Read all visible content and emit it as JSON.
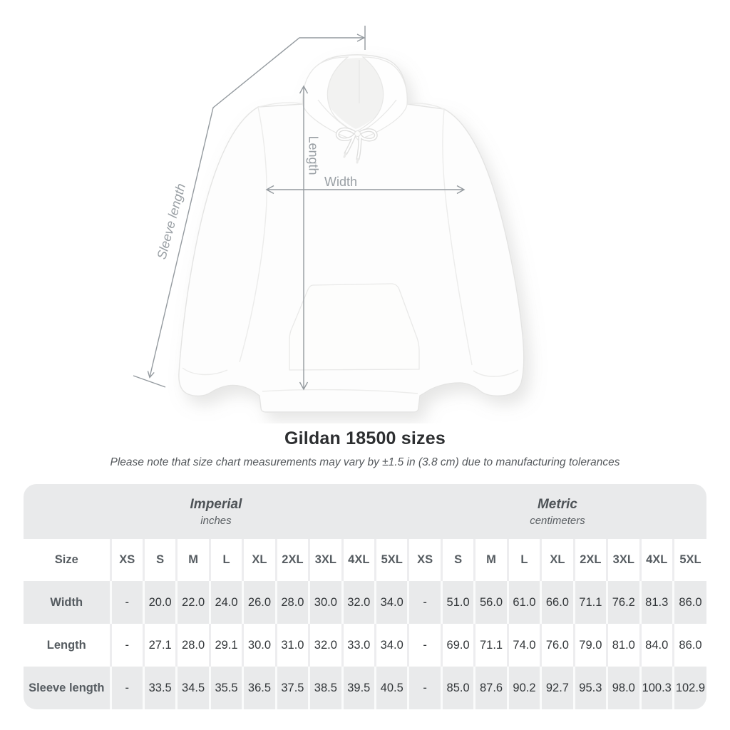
{
  "figure": {
    "labels": {
      "width": "Width",
      "length": "Length",
      "sleeve": "Sleeve length"
    },
    "annotation_color": "#949a9f"
  },
  "heading": {
    "title": "Gildan 18500 sizes",
    "note": "Please note that size chart measurements may vary by ±1.5 in (3.8 cm) due to manufacturing tolerances"
  },
  "size_table": {
    "corner_label": "Size",
    "unit_groups": [
      {
        "name": "Imperial",
        "unit": "inches"
      },
      {
        "name": "Metric",
        "unit": "centimeters"
      }
    ],
    "sizes": [
      "XS",
      "S",
      "M",
      "L",
      "XL",
      "2XL",
      "3XL",
      "4XL",
      "5XL"
    ],
    "rows": [
      {
        "label": "Width",
        "imperial": [
          "-",
          "20.0",
          "22.0",
          "24.0",
          "26.0",
          "28.0",
          "30.0",
          "32.0",
          "34.0"
        ],
        "metric": [
          "-",
          "51.0",
          "56.0",
          "61.0",
          "66.0",
          "71.1",
          "76.2",
          "81.3",
          "86.0"
        ]
      },
      {
        "label": "Length",
        "imperial": [
          "-",
          "27.1",
          "28.0",
          "29.1",
          "30.0",
          "31.0",
          "32.0",
          "33.0",
          "34.0"
        ],
        "metric": [
          "-",
          "69.0",
          "71.1",
          "74.0",
          "76.0",
          "79.0",
          "81.0",
          "84.0",
          "86.0"
        ]
      },
      {
        "label": "Sleeve length",
        "imperial": [
          "-",
          "33.5",
          "34.5",
          "35.5",
          "36.5",
          "37.5",
          "38.5",
          "39.5",
          "40.5"
        ],
        "metric": [
          "-",
          "85.0",
          "87.6",
          "90.2",
          "92.7",
          "95.3",
          "98.0",
          "100.3",
          "102.9"
        ]
      }
    ]
  },
  "chart_data": {
    "type": "table",
    "title": "Gildan 18500 sizes",
    "columns": [
      "Size",
      "XS",
      "S",
      "M",
      "L",
      "XL",
      "2XL",
      "3XL",
      "4XL",
      "5XL"
    ],
    "imperial_unit": "inches",
    "metric_unit": "centimeters",
    "rows_imperial": [
      [
        "Width",
        "-",
        20.0,
        22.0,
        24.0,
        26.0,
        28.0,
        30.0,
        32.0,
        34.0
      ],
      [
        "Length",
        "-",
        27.1,
        28.0,
        29.1,
        30.0,
        31.0,
        32.0,
        33.0,
        34.0
      ],
      [
        "Sleeve length",
        "-",
        33.5,
        34.5,
        35.5,
        36.5,
        37.5,
        38.5,
        39.5,
        40.5
      ]
    ],
    "rows_metric": [
      [
        "Width",
        "-",
        51.0,
        56.0,
        61.0,
        66.0,
        71.1,
        76.2,
        81.3,
        86.0
      ],
      [
        "Length",
        "-",
        69.0,
        71.1,
        74.0,
        76.0,
        79.0,
        81.0,
        84.0,
        86.0
      ],
      [
        "Sleeve length",
        "-",
        85.0,
        87.6,
        90.2,
        92.7,
        95.3,
        98.0,
        100.3,
        102.9
      ]
    ]
  }
}
